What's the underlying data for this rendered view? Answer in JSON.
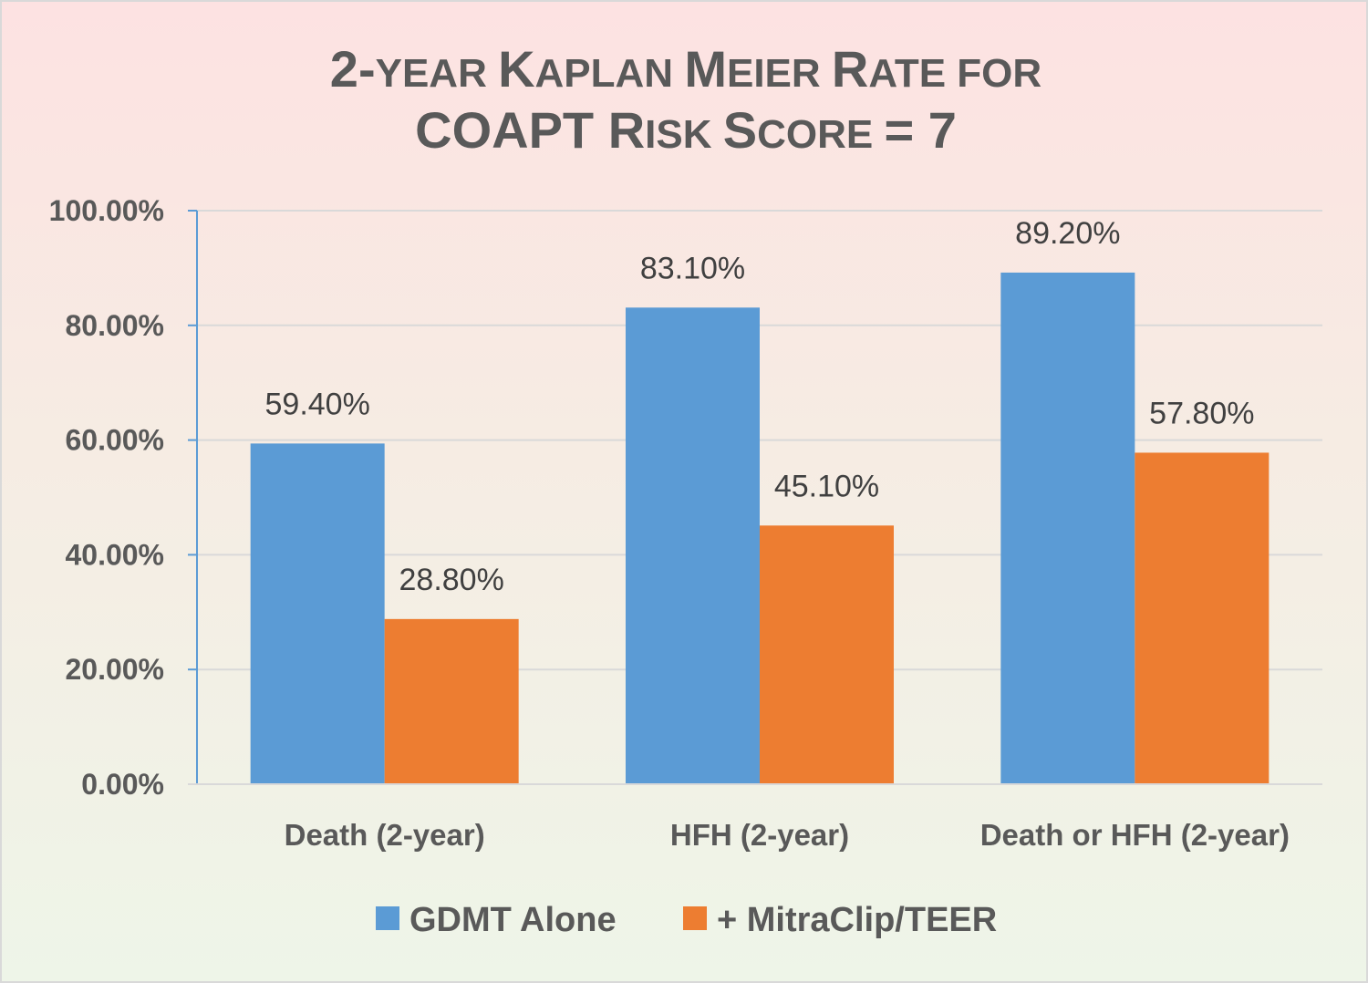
{
  "chart_data": {
    "type": "bar",
    "title_lines": [
      "2-year Kaplan Meier Rate for",
      "COAPT Risk Score = 7"
    ],
    "categories": [
      "Death (2-year)",
      "HFH (2-year)",
      "Death or HFH (2-year)"
    ],
    "series": [
      {
        "name": "GDMT Alone",
        "color": "#5b9bd5",
        "values": [
          59.4,
          83.1,
          89.2
        ],
        "labels": [
          "59.40%",
          "83.10%",
          "89.20%"
        ]
      },
      {
        "name": "+ MitraClip/TEER",
        "color": "#ed7d31",
        "values": [
          28.8,
          45.1,
          57.8
        ],
        "labels": [
          "28.80%",
          "45.10%",
          "57.80%"
        ]
      }
    ],
    "ylim": [
      0,
      100
    ],
    "yticks": [
      0,
      20,
      40,
      60,
      80,
      100
    ],
    "ytick_labels": [
      "0.00%",
      "20.00%",
      "40.00%",
      "60.00%",
      "80.00%",
      "100.00%"
    ],
    "grid": true,
    "legend": "bottom",
    "xlabel": "",
    "ylabel": ""
  }
}
